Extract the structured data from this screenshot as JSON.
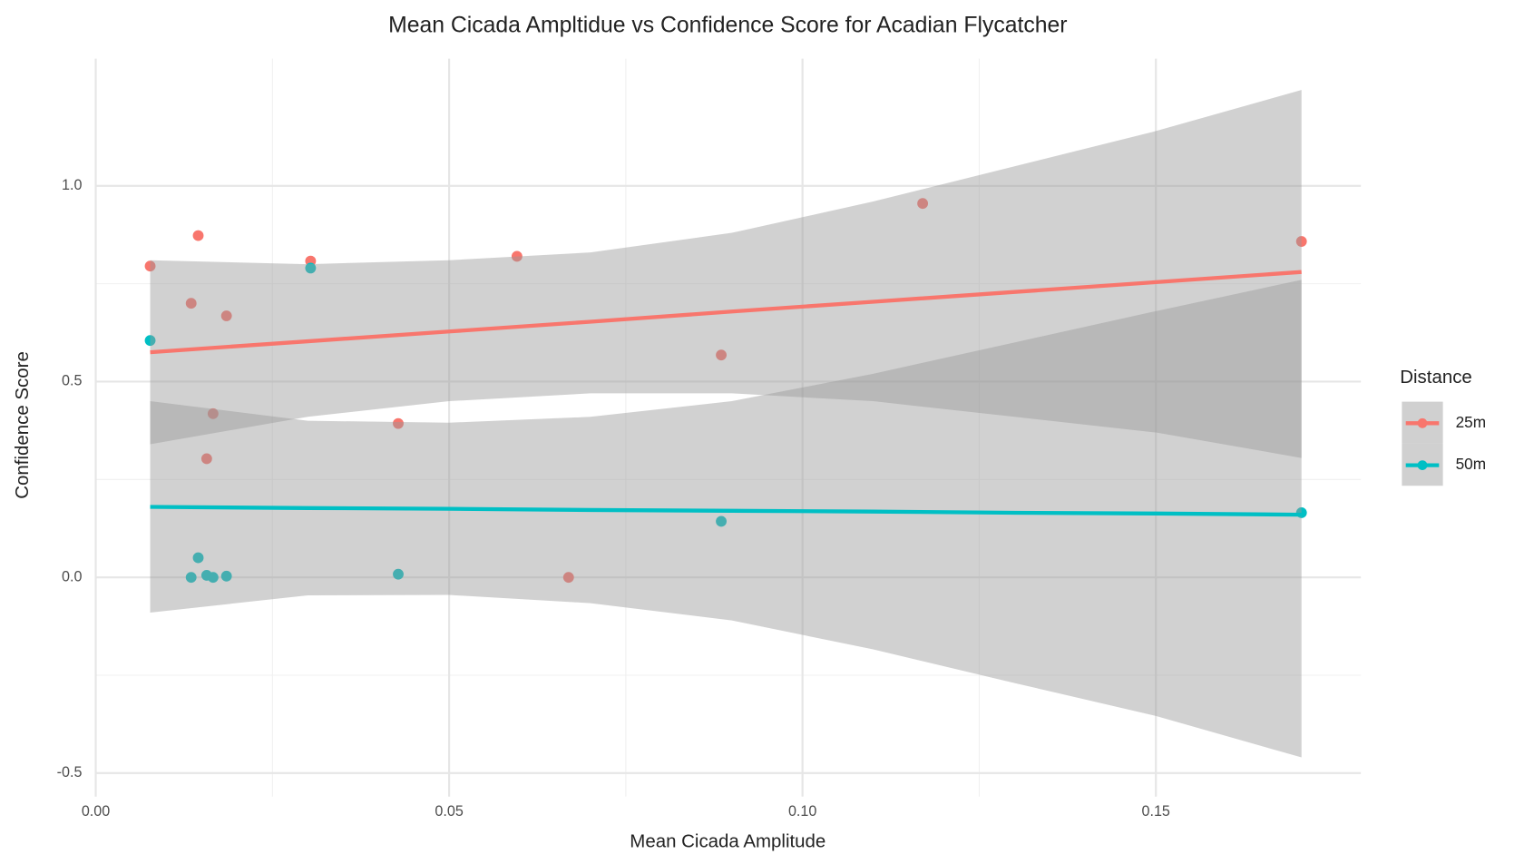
{
  "chart_data": {
    "type": "scatter",
    "title": "Mean Cicada Ampltidue vs Confidence Score for Acadian Flycatcher",
    "x_label": "Mean Cicada Amplitude",
    "y_label": "Confidence Score",
    "legend_title": "Distance",
    "legend_position": "right",
    "grid": true,
    "xlim": [
      0,
      0.179
    ],
    "ylim": [
      -0.56,
      1.325
    ],
    "xticks": [
      {
        "value": 0,
        "label": "0.00"
      },
      {
        "value": 0.05,
        "label": "0.05"
      },
      {
        "value": 0.1,
        "label": "0.10"
      },
      {
        "value": 0.15,
        "label": "0.15"
      }
    ],
    "yticks": [
      -0.5,
      {
        "value": 0,
        "label": "0.0"
      },
      0.5,
      {
        "value": 1,
        "label": "1.0"
      }
    ],
    "series": [
      {
        "name": "25m",
        "color": "#F8766D",
        "x": [
          0.0077,
          0.0145,
          0.0135,
          0.0185,
          0.0166,
          0.0157,
          0.0304,
          0.0428,
          0.0596,
          0.0669,
          0.0885,
          0.117,
          0.1706
        ],
        "values": [
          0.795,
          0.873,
          0.7,
          0.668,
          0.418,
          0.303,
          0.808,
          0.393,
          0.82,
          0.0,
          0.568,
          0.955,
          0.858
        ],
        "trend": {
          "x": [
            0.0077,
            0.03,
            0.05,
            0.07,
            0.09,
            0.11,
            0.13,
            0.15,
            0.1706
          ],
          "values": [
            0.575,
            0.603,
            0.628,
            0.653,
            0.679,
            0.704,
            0.729,
            0.754,
            0.78
          ],
          "lower": [
            0.34,
            0.41,
            0.45,
            0.47,
            0.47,
            0.45,
            0.41,
            0.37,
            0.305
          ],
          "upper": [
            0.81,
            0.8,
            0.81,
            0.83,
            0.88,
            0.96,
            1.05,
            1.14,
            1.245
          ]
        }
      },
      {
        "name": "50m",
        "color": "#00BFC4",
        "x": [
          0.0077,
          0.0304,
          0.0145,
          0.0135,
          0.0157,
          0.0166,
          0.0185,
          0.0428,
          0.0885,
          0.1706
        ],
        "values": [
          0.605,
          0.79,
          0.05,
          0.0,
          0.005,
          0.0,
          0.003,
          0.008,
          0.143,
          0.165
        ],
        "trend": {
          "x": [
            0.0077,
            0.03,
            0.05,
            0.07,
            0.09,
            0.11,
            0.13,
            0.15,
            0.1706
          ],
          "values": [
            0.18,
            0.177,
            0.175,
            0.172,
            0.17,
            0.168,
            0.165,
            0.163,
            0.16
          ],
          "lower": [
            -0.09,
            -0.046,
            -0.045,
            -0.066,
            -0.11,
            -0.184,
            -0.27,
            -0.354,
            -0.46
          ],
          "upper": [
            0.45,
            0.4,
            0.395,
            0.41,
            0.45,
            0.52,
            0.6,
            0.68,
            0.76
          ]
        }
      }
    ]
  }
}
